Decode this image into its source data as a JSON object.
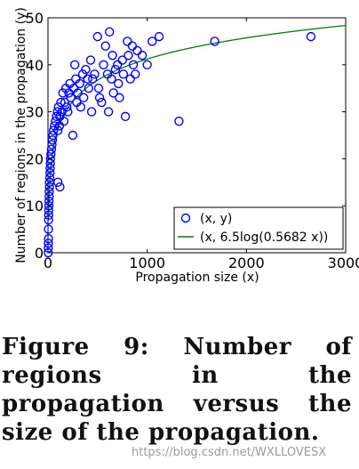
{
  "chart_data": {
    "type": "scatter",
    "xlabel": "Propagation size (x)",
    "ylabel": "Number of regions in the propagation (y)",
    "xlim": [
      0,
      3000
    ],
    "ylim": [
      0,
      50
    ],
    "x_ticks": [
      "0",
      "1000",
      "2000",
      "3000"
    ],
    "y_ticks": [
      "0",
      "10",
      "20",
      "30",
      "40",
      "50"
    ],
    "grid": false,
    "legend_position": "bottom-right",
    "series": [
      {
        "name": "(x, y)",
        "kind": "scatter",
        "marker": "open-circle",
        "color": "#0000ff",
        "points": [
          [
            2,
            0
          ],
          [
            3,
            1
          ],
          [
            4,
            2
          ],
          [
            5,
            3
          ],
          [
            5,
            5
          ],
          [
            6,
            7
          ],
          [
            7,
            8
          ],
          [
            8,
            9
          ],
          [
            9,
            10
          ],
          [
            10,
            11
          ],
          [
            12,
            12
          ],
          [
            12,
            13
          ],
          [
            15,
            14
          ],
          [
            15,
            15
          ],
          [
            18,
            16
          ],
          [
            20,
            17
          ],
          [
            22,
            18
          ],
          [
            24,
            19
          ],
          [
            25,
            20
          ],
          [
            30,
            21
          ],
          [
            35,
            22
          ],
          [
            40,
            23
          ],
          [
            45,
            24
          ],
          [
            50,
            25
          ],
          [
            55,
            26
          ],
          [
            65,
            27
          ],
          [
            75,
            28
          ],
          [
            85,
            29
          ],
          [
            95,
            30
          ],
          [
            100,
            26
          ],
          [
            105,
            31
          ],
          [
            115,
            27
          ],
          [
            120,
            29
          ],
          [
            130,
            32
          ],
          [
            140,
            30
          ],
          [
            150,
            34
          ],
          [
            160,
            28
          ],
          [
            170,
            32
          ],
          [
            180,
            35
          ],
          [
            190,
            31
          ],
          [
            200,
            30
          ],
          [
            210,
            34
          ],
          [
            220,
            36
          ],
          [
            230,
            33
          ],
          [
            250,
            25
          ],
          [
            260,
            35
          ],
          [
            270,
            40
          ],
          [
            280,
            37
          ],
          [
            290,
            32
          ],
          [
            300,
            34
          ],
          [
            320,
            36
          ],
          [
            330,
            31
          ],
          [
            350,
            38
          ],
          [
            360,
            33
          ],
          [
            380,
            39
          ],
          [
            400,
            37
          ],
          [
            410,
            35
          ],
          [
            430,
            41
          ],
          [
            440,
            30
          ],
          [
            450,
            37
          ],
          [
            470,
            38
          ],
          [
            500,
            46
          ],
          [
            510,
            35
          ],
          [
            520,
            33
          ],
          [
            540,
            32
          ],
          [
            560,
            40
          ],
          [
            580,
            44
          ],
          [
            600,
            38
          ],
          [
            610,
            30
          ],
          [
            620,
            47
          ],
          [
            640,
            37
          ],
          [
            650,
            42
          ],
          [
            660,
            34
          ],
          [
            680,
            39
          ],
          [
            700,
            40
          ],
          [
            710,
            36
          ],
          [
            720,
            33
          ],
          [
            750,
            41
          ],
          [
            760,
            38
          ],
          [
            780,
            29
          ],
          [
            800,
            45
          ],
          [
            810,
            42
          ],
          [
            830,
            37
          ],
          [
            850,
            44
          ],
          [
            860,
            40
          ],
          [
            880,
            38
          ],
          [
            900,
            43
          ],
          [
            950,
            42
          ],
          [
            1000,
            40
          ],
          [
            1050,
            45
          ],
          [
            1120,
            46
          ],
          [
            1320,
            28
          ],
          [
            1680,
            45
          ],
          [
            2650,
            46
          ],
          [
            100,
            15
          ],
          [
            120,
            14
          ]
        ]
      },
      {
        "name": "(x, 6.5log(0.5682 x))",
        "kind": "line",
        "color": "#008000",
        "function": "6.5*ln(0.5682*x)"
      }
    ]
  },
  "caption": "Figure 9: Number of regions in the propagation versus the size of the propagation.",
  "watermark": "https://blog.csdn.net/WXLLOVESX"
}
